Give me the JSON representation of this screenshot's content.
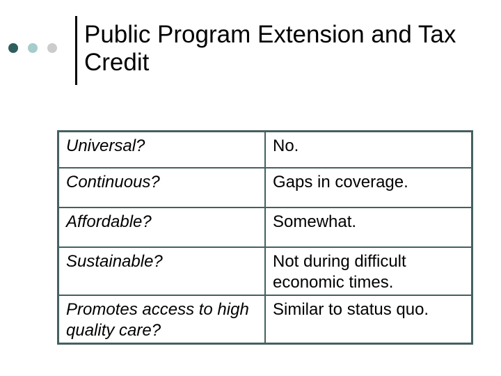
{
  "slide": {
    "background_color": "#ffffff",
    "text_color": "#000000",
    "title": {
      "line1": "Public Program Extension and Tax",
      "line2": "Credit",
      "full": "Public Program Extension and Tax Credit"
    },
    "decoration": {
      "bullets": [
        {
          "name": "dark-teal-bullet",
          "color": "#2e5e5e"
        },
        {
          "name": "light-teal-bullet",
          "color": "#a6cccc"
        },
        {
          "name": "gray-bullet",
          "color": "#cccccc"
        }
      ],
      "divider_color": "#000000"
    },
    "table": {
      "border_color": "#456060",
      "columns": [
        "criterion",
        "assessment"
      ],
      "rows": [
        {
          "question": "Universal?",
          "answer": "No."
        },
        {
          "question": "Continuous?",
          "answer": "Gaps in coverage."
        },
        {
          "question": "Affordable?",
          "answer": "Somewhat."
        },
        {
          "question": "Sustainable?",
          "answer": "Not during difficult economic times."
        },
        {
          "question": "Promotes access to high quality care?",
          "answer": "Similar to status quo."
        }
      ]
    }
  }
}
